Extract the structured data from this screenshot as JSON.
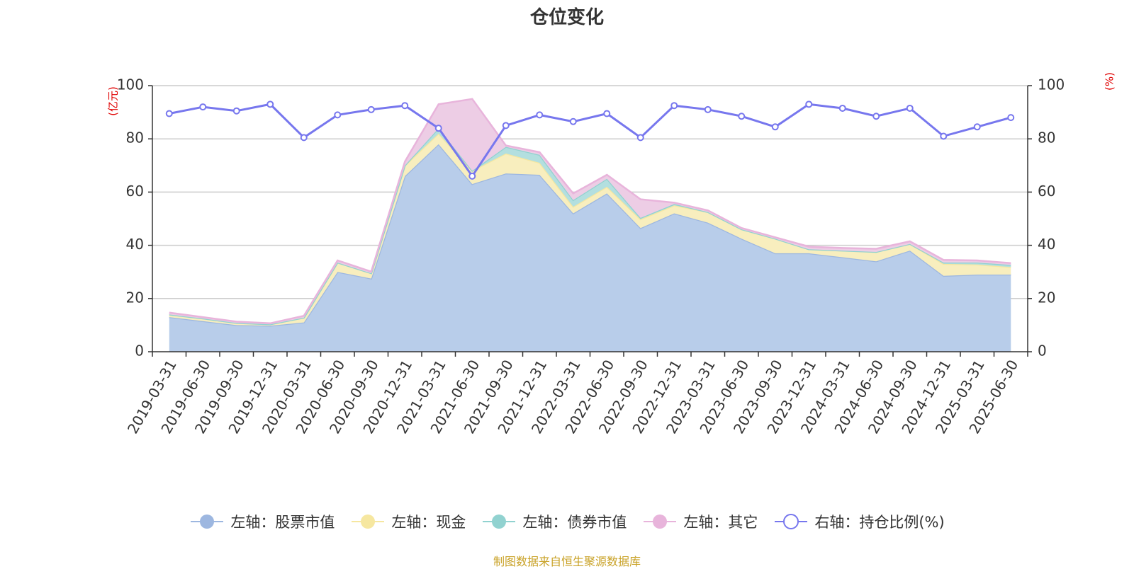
{
  "title": "仓位变化",
  "source": "制图数据来自恒生聚源数据库",
  "chart_data": {
    "type": "area",
    "title": "仓位变化",
    "categories": [
      "2019-03-31",
      "2019-06-30",
      "2019-09-30",
      "2019-12-31",
      "2020-03-31",
      "2020-06-30",
      "2020-09-30",
      "2020-12-31",
      "2021-03-31",
      "2021-06-30",
      "2021-09-30",
      "2021-12-31",
      "2022-03-31",
      "2022-06-30",
      "2022-09-30",
      "2022-12-31",
      "2023-03-31",
      "2023-06-30",
      "2023-09-30",
      "2023-12-31",
      "2024-03-31",
      "2024-06-30",
      "2024-09-30",
      "2024-12-31",
      "2025-03-31",
      "2025-06-30"
    ],
    "left_axis": {
      "unit": "(亿元)",
      "ylim": [
        0,
        100
      ],
      "ticks": [
        0,
        20,
        40,
        60,
        80,
        100
      ]
    },
    "right_axis": {
      "unit": "(%)",
      "ylim": [
        0,
        100
      ],
      "ticks": [
        0,
        20,
        40,
        60,
        80,
        100
      ]
    },
    "grid": true,
    "legend_position": "bottom",
    "series": [
      {
        "name": "左轴：股票市值",
        "axis": "left",
        "stack": true,
        "color": "#9db7e0",
        "fill": "#b8cdea",
        "values": [
          13,
          11.5,
          10,
          9.8,
          11,
          30,
          27.5,
          66,
          78,
          63,
          67,
          66.5,
          52,
          59.5,
          46.5,
          52,
          48.5,
          42.5,
          37,
          37,
          35.5,
          34,
          38,
          28.5,
          29,
          29
        ]
      },
      {
        "name": "左轴：现金",
        "axis": "left",
        "stack": true,
        "color": "#f6e7a0",
        "fill": "#f8eebe",
        "values": [
          1,
          1,
          0.8,
          0.5,
          1.8,
          3.5,
          2,
          4,
          4,
          5,
          7.5,
          4.5,
          2.5,
          2.5,
          3.3,
          3,
          4,
          3.5,
          5.5,
          1.5,
          2.5,
          3.5,
          2.5,
          4.5,
          3.8,
          2.8
        ]
      },
      {
        "name": "左轴：债券市值",
        "axis": "left",
        "stack": true,
        "color": "#91d2d0",
        "fill": "#b3dfdf",
        "values": [
          0,
          0,
          0,
          0,
          0,
          0,
          0,
          0,
          2,
          0,
          2.5,
          3,
          2.5,
          3,
          0.5,
          0.5,
          0,
          0,
          0,
          0,
          0,
          0,
          0,
          0.5,
          0.7,
          0.8
        ]
      },
      {
        "name": "左轴：其它",
        "axis": "left",
        "stack": true,
        "color": "#e8b4db",
        "fill": "#edcde5",
        "values": [
          0.7,
          0.5,
          0.5,
          0.4,
          0.7,
          0.8,
          0.6,
          1.5,
          9,
          27,
          0.5,
          1,
          2.5,
          1.5,
          7,
          0.5,
          0.6,
          0.5,
          0.5,
          1,
          1,
          1.2,
          1,
          1,
          0.8,
          0.7
        ]
      },
      {
        "name": "右轴：持仓比例(%)",
        "axis": "right",
        "type": "line",
        "color": "#7777ee",
        "values": [
          89.5,
          92,
          90.5,
          93,
          80.5,
          89,
          91,
          92.5,
          84,
          66,
          85,
          89,
          86.5,
          89.5,
          80.5,
          92.5,
          91,
          88.5,
          84.5,
          93,
          91.5,
          88.5,
          91.5,
          81,
          84.5,
          88
        ]
      }
    ]
  }
}
